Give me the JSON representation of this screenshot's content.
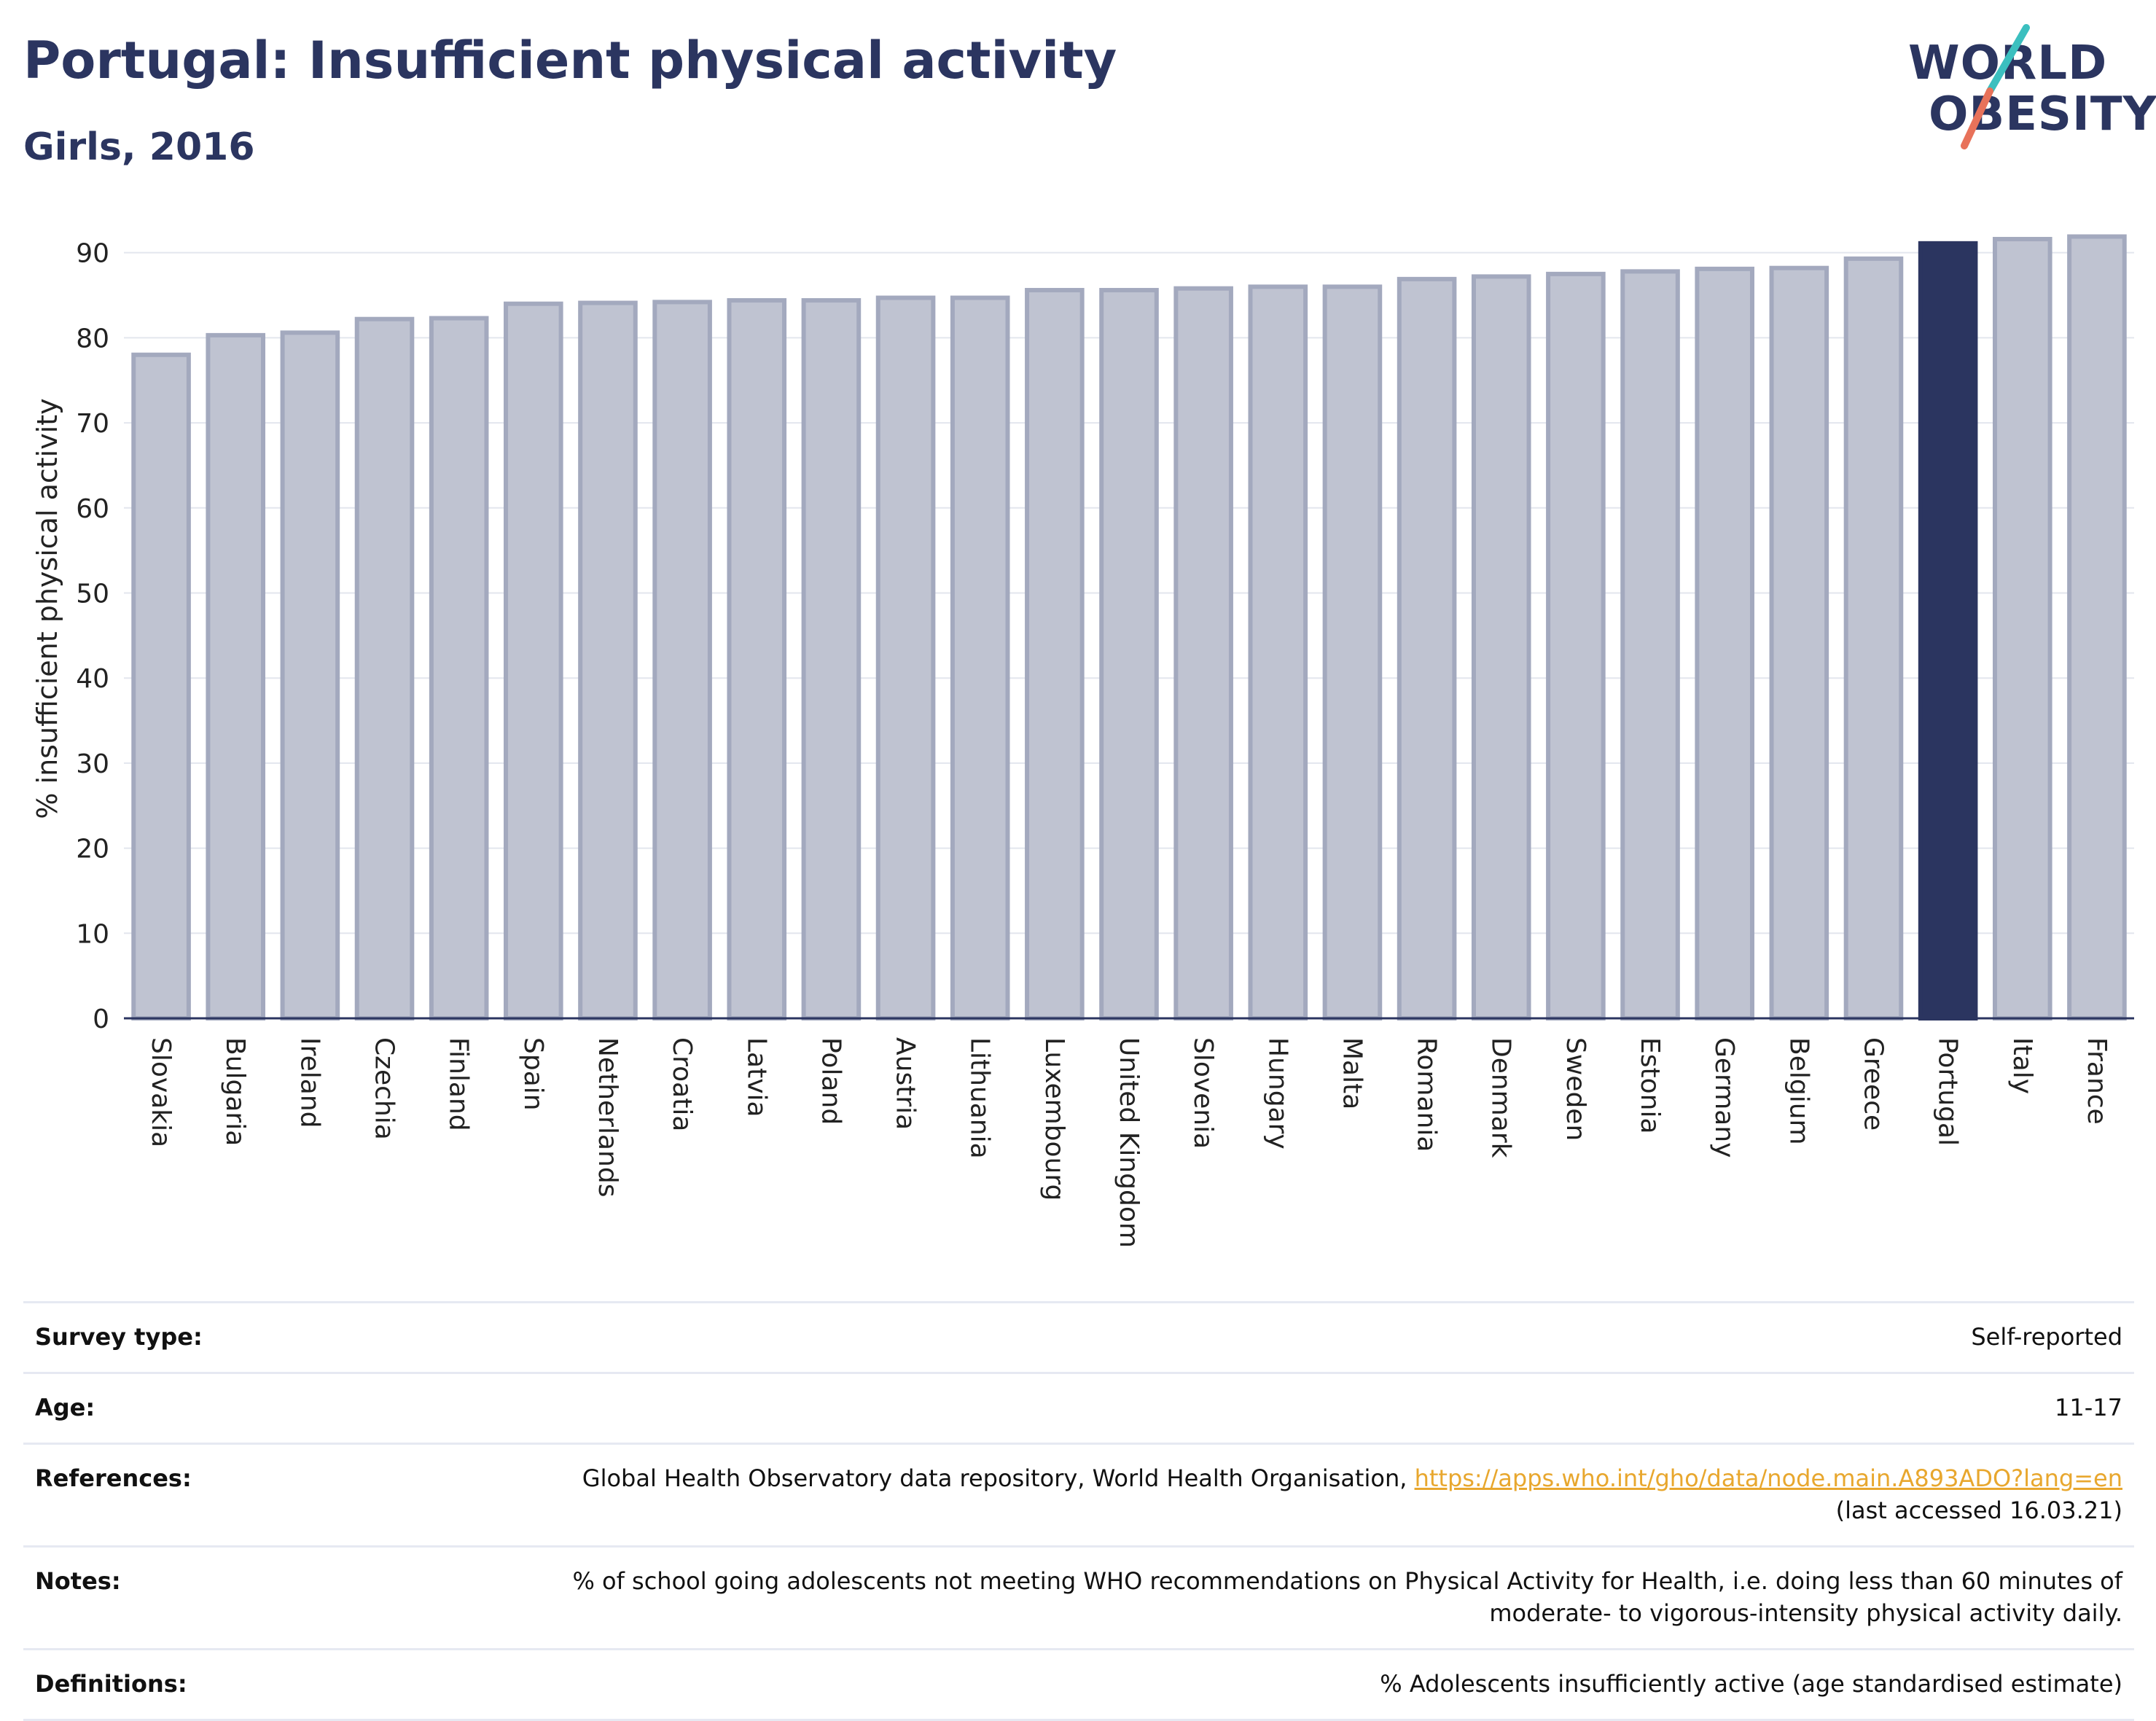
{
  "title": "Portugal: Insufficient physical activity",
  "subtitle": "Girls, 2016",
  "logo": {
    "line1": "WORLD",
    "line2": "OBESITY",
    "slash_colors": [
      "#3bbfbf",
      "#e8725a"
    ]
  },
  "colors": {
    "highlight": "#2b3560",
    "bar": "#bfc3d1",
    "bar_border": "#a3a9be",
    "text": "#2b3560",
    "link": "#e8a72e"
  },
  "chart_data": {
    "type": "bar",
    "title": "Portugal: Insufficient physical activity",
    "subtitle": "Girls, 2016",
    "ylabel": "% insufficient physical activity",
    "xlabel": "",
    "ylim": [
      0,
      94
    ],
    "yticks": [
      0,
      10,
      20,
      30,
      40,
      50,
      60,
      70,
      80,
      90
    ],
    "grid": true,
    "highlight": "Portugal",
    "categories": [
      "Slovakia",
      "Bulgaria",
      "Ireland",
      "Czechia",
      "Finland",
      "Spain",
      "Netherlands",
      "Croatia",
      "Latvia",
      "Poland",
      "Austria",
      "Lithuania",
      "Luxembourg",
      "United Kingdom",
      "Slovenia",
      "Hungary",
      "Malta",
      "Romania",
      "Denmark",
      "Sweden",
      "Estonia",
      "Germany",
      "Belgium",
      "Greece",
      "Portugal",
      "Italy",
      "France"
    ],
    "values": [
      78.0,
      80.3,
      80.6,
      82.2,
      82.3,
      84.0,
      84.1,
      84.2,
      84.4,
      84.4,
      84.7,
      84.7,
      85.6,
      85.6,
      85.8,
      86.0,
      86.0,
      86.9,
      87.2,
      87.5,
      87.8,
      88.1,
      88.2,
      89.3,
      91.1,
      91.6,
      91.9
    ]
  },
  "meta": {
    "survey_type": {
      "label": "Survey type:",
      "value": "Self-reported"
    },
    "age": {
      "label": "Age:",
      "value": "11-17"
    },
    "references": {
      "label": "References:",
      "text": "Global Health Observatory data repository, World Health Organisation,",
      "link": "https://apps.who.int/gho/data/node.main.A893ADO?lang=en",
      "suffix": "(last accessed 16.03.21)"
    },
    "notes": {
      "label": "Notes:",
      "line1": "% of school going adolescents not meeting WHO recommendations on Physical Activity for Health, i.e. doing less than 60 minutes of",
      "line2": "moderate- to vigorous-intensity physical activity daily."
    },
    "definitions": {
      "label": "Definitions:",
      "value": "% Adolescents insufficiently active (age standardised estimate)"
    }
  }
}
